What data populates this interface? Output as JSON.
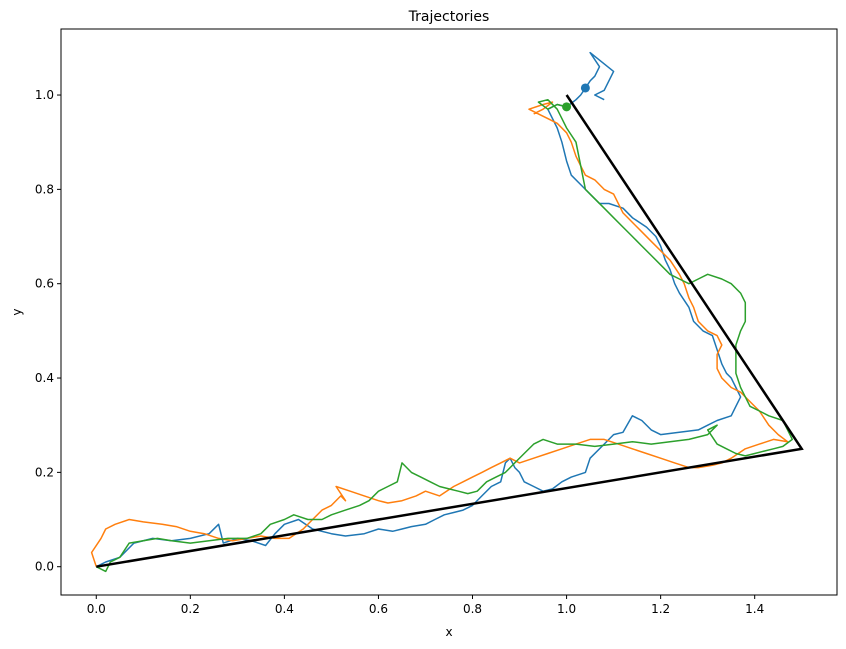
{
  "chart_data": {
    "type": "line",
    "title": "Trajectories",
    "xlabel": "x",
    "ylabel": "y",
    "xlim": [
      -0.075,
      1.575
    ],
    "ylim": [
      -0.06,
      1.14
    ],
    "grid": false,
    "x_ticks": [
      0.0,
      0.2,
      0.4,
      0.6,
      0.8,
      1.0,
      1.2,
      1.4
    ],
    "x_tick_labels": [
      "0.0",
      "0.2",
      "0.4",
      "0.6",
      "0.8",
      "1.0",
      "1.2",
      "1.4"
    ],
    "y_ticks": [
      0.0,
      0.2,
      0.4,
      0.6,
      0.8,
      1.0
    ],
    "y_tick_labels": [
      "0.0",
      "0.2",
      "0.4",
      "0.6",
      "0.8",
      "1.0"
    ],
    "reference_path": {
      "color": "#000000",
      "points": [
        [
          0.0,
          0.0
        ],
        [
          1.5,
          0.25
        ],
        [
          1.0,
          1.0
        ]
      ]
    },
    "series": [
      {
        "color": "#1f77b4",
        "end_marker": [
          1.04,
          1.015
        ],
        "points": [
          [
            0.0,
            0.0
          ],
          [
            0.02,
            0.01
          ],
          [
            0.05,
            0.02
          ],
          [
            0.08,
            0.05
          ],
          [
            0.12,
            0.06
          ],
          [
            0.16,
            0.055
          ],
          [
            0.2,
            0.06
          ],
          [
            0.24,
            0.07
          ],
          [
            0.26,
            0.09
          ],
          [
            0.27,
            0.05
          ],
          [
            0.3,
            0.06
          ],
          [
            0.33,
            0.055
          ],
          [
            0.36,
            0.045
          ],
          [
            0.38,
            0.07
          ],
          [
            0.4,
            0.09
          ],
          [
            0.43,
            0.1
          ],
          [
            0.46,
            0.08
          ],
          [
            0.5,
            0.07
          ],
          [
            0.53,
            0.065
          ],
          [
            0.57,
            0.07
          ],
          [
            0.6,
            0.08
          ],
          [
            0.63,
            0.075
          ],
          [
            0.65,
            0.08
          ],
          [
            0.67,
            0.085
          ],
          [
            0.7,
            0.09
          ],
          [
            0.72,
            0.1
          ],
          [
            0.74,
            0.11
          ],
          [
            0.76,
            0.115
          ],
          [
            0.78,
            0.12
          ],
          [
            0.8,
            0.13
          ],
          [
            0.82,
            0.15
          ],
          [
            0.84,
            0.17
          ],
          [
            0.86,
            0.18
          ],
          [
            0.87,
            0.22
          ],
          [
            0.88,
            0.23
          ],
          [
            0.89,
            0.21
          ],
          [
            0.9,
            0.2
          ],
          [
            0.91,
            0.18
          ],
          [
            0.93,
            0.17
          ],
          [
            0.95,
            0.16
          ],
          [
            0.97,
            0.165
          ],
          [
            0.99,
            0.18
          ],
          [
            1.01,
            0.19
          ],
          [
            1.04,
            0.2
          ],
          [
            1.05,
            0.23
          ],
          [
            1.08,
            0.26
          ],
          [
            1.1,
            0.28
          ],
          [
            1.12,
            0.285
          ],
          [
            1.14,
            0.32
          ],
          [
            1.16,
            0.31
          ],
          [
            1.18,
            0.29
          ],
          [
            1.2,
            0.28
          ],
          [
            1.24,
            0.285
          ],
          [
            1.28,
            0.29
          ],
          [
            1.3,
            0.3
          ],
          [
            1.32,
            0.31
          ],
          [
            1.35,
            0.32
          ],
          [
            1.36,
            0.34
          ],
          [
            1.37,
            0.36
          ],
          [
            1.36,
            0.38
          ],
          [
            1.35,
            0.4
          ],
          [
            1.34,
            0.41
          ],
          [
            1.33,
            0.43
          ],
          [
            1.32,
            0.46
          ],
          [
            1.31,
            0.49
          ],
          [
            1.29,
            0.5
          ],
          [
            1.27,
            0.52
          ],
          [
            1.26,
            0.55
          ],
          [
            1.24,
            0.58
          ],
          [
            1.23,
            0.6
          ],
          [
            1.22,
            0.63
          ],
          [
            1.21,
            0.65
          ],
          [
            1.2,
            0.68
          ],
          [
            1.19,
            0.7
          ],
          [
            1.17,
            0.72
          ],
          [
            1.14,
            0.74
          ],
          [
            1.12,
            0.76
          ],
          [
            1.09,
            0.77
          ],
          [
            1.07,
            0.77
          ],
          [
            1.05,
            0.79
          ],
          [
            1.03,
            0.81
          ],
          [
            1.01,
            0.83
          ],
          [
            1.0,
            0.86
          ],
          [
            0.99,
            0.9
          ],
          [
            0.98,
            0.93
          ],
          [
            0.97,
            0.95
          ],
          [
            0.96,
            0.97
          ],
          [
            0.98,
            0.98
          ],
          [
            1.0,
            0.975
          ],
          [
            1.02,
            0.99
          ],
          [
            1.03,
            1.0
          ],
          [
            1.04,
            1.015
          ],
          [
            1.05,
            1.03
          ],
          [
            1.06,
            1.04
          ],
          [
            1.07,
            1.06
          ],
          [
            1.05,
            1.09
          ],
          [
            1.1,
            1.05
          ],
          [
            1.08,
            1.01
          ],
          [
            1.06,
            1.0
          ],
          [
            1.08,
            0.99
          ]
        ]
      },
      {
        "color": "#ff7f0e",
        "end_marker": null,
        "points": [
          [
            0.0,
            0.0
          ],
          [
            -0.01,
            0.03
          ],
          [
            0.01,
            0.06
          ],
          [
            0.02,
            0.08
          ],
          [
            0.04,
            0.09
          ],
          [
            0.07,
            0.1
          ],
          [
            0.1,
            0.095
          ],
          [
            0.14,
            0.09
          ],
          [
            0.17,
            0.085
          ],
          [
            0.2,
            0.075
          ],
          [
            0.23,
            0.07
          ],
          [
            0.26,
            0.06
          ],
          [
            0.29,
            0.055
          ],
          [
            0.32,
            0.06
          ],
          [
            0.35,
            0.065
          ],
          [
            0.38,
            0.06
          ],
          [
            0.41,
            0.06
          ],
          [
            0.44,
            0.08
          ],
          [
            0.46,
            0.1
          ],
          [
            0.48,
            0.12
          ],
          [
            0.5,
            0.13
          ],
          [
            0.52,
            0.15
          ],
          [
            0.53,
            0.14
          ],
          [
            0.51,
            0.17
          ],
          [
            0.54,
            0.16
          ],
          [
            0.57,
            0.15
          ],
          [
            0.6,
            0.14
          ],
          [
            0.62,
            0.135
          ],
          [
            0.65,
            0.14
          ],
          [
            0.68,
            0.15
          ],
          [
            0.7,
            0.16
          ],
          [
            0.73,
            0.15
          ],
          [
            0.76,
            0.17
          ],
          [
            0.78,
            0.18
          ],
          [
            0.8,
            0.19
          ],
          [
            0.82,
            0.2
          ],
          [
            0.84,
            0.21
          ],
          [
            0.86,
            0.22
          ],
          [
            0.88,
            0.23
          ],
          [
            0.9,
            0.22
          ],
          [
            0.93,
            0.23
          ],
          [
            0.96,
            0.24
          ],
          [
            0.99,
            0.25
          ],
          [
            1.02,
            0.26
          ],
          [
            1.05,
            0.27
          ],
          [
            1.08,
            0.27
          ],
          [
            1.11,
            0.26
          ],
          [
            1.14,
            0.25
          ],
          [
            1.17,
            0.24
          ],
          [
            1.2,
            0.23
          ],
          [
            1.23,
            0.22
          ],
          [
            1.26,
            0.21
          ],
          [
            1.28,
            0.21
          ],
          [
            1.31,
            0.215
          ],
          [
            1.33,
            0.22
          ],
          [
            1.35,
            0.23
          ],
          [
            1.38,
            0.25
          ],
          [
            1.41,
            0.26
          ],
          [
            1.44,
            0.27
          ],
          [
            1.47,
            0.265
          ],
          [
            1.45,
            0.28
          ],
          [
            1.43,
            0.3
          ],
          [
            1.41,
            0.33
          ],
          [
            1.39,
            0.35
          ],
          [
            1.37,
            0.37
          ],
          [
            1.35,
            0.38
          ],
          [
            1.33,
            0.4
          ],
          [
            1.32,
            0.42
          ],
          [
            1.32,
            0.45
          ],
          [
            1.33,
            0.47
          ],
          [
            1.32,
            0.49
          ],
          [
            1.3,
            0.5
          ],
          [
            1.28,
            0.52
          ],
          [
            1.27,
            0.55
          ],
          [
            1.26,
            0.57
          ],
          [
            1.25,
            0.6
          ],
          [
            1.24,
            0.62
          ],
          [
            1.22,
            0.65
          ],
          [
            1.2,
            0.67
          ],
          [
            1.18,
            0.69
          ],
          [
            1.16,
            0.71
          ],
          [
            1.14,
            0.73
          ],
          [
            1.12,
            0.75
          ],
          [
            1.11,
            0.77
          ],
          [
            1.1,
            0.79
          ],
          [
            1.08,
            0.8
          ],
          [
            1.06,
            0.82
          ],
          [
            1.04,
            0.83
          ],
          [
            1.03,
            0.85
          ],
          [
            1.02,
            0.87
          ],
          [
            1.01,
            0.9
          ],
          [
            1.0,
            0.92
          ],
          [
            0.98,
            0.94
          ],
          [
            0.96,
            0.95
          ],
          [
            0.94,
            0.96
          ],
          [
            0.92,
            0.97
          ],
          [
            0.95,
            0.98
          ],
          [
            0.97,
            0.985
          ],
          [
            0.95,
            0.97
          ],
          [
            0.93,
            0.96
          ]
        ]
      },
      {
        "color": "#2ca02c",
        "end_marker": [
          1.0,
          0.975
        ],
        "points": [
          [
            0.0,
            0.0
          ],
          [
            0.02,
            -0.01
          ],
          [
            0.03,
            0.01
          ],
          [
            0.05,
            0.02
          ],
          [
            0.07,
            0.05
          ],
          [
            0.1,
            0.055
          ],
          [
            0.13,
            0.06
          ],
          [
            0.16,
            0.055
          ],
          [
            0.2,
            0.05
          ],
          [
            0.24,
            0.055
          ],
          [
            0.28,
            0.06
          ],
          [
            0.32,
            0.06
          ],
          [
            0.35,
            0.07
          ],
          [
            0.37,
            0.09
          ],
          [
            0.4,
            0.1
          ],
          [
            0.42,
            0.11
          ],
          [
            0.45,
            0.1
          ],
          [
            0.48,
            0.1
          ],
          [
            0.5,
            0.11
          ],
          [
            0.53,
            0.12
          ],
          [
            0.56,
            0.13
          ],
          [
            0.58,
            0.14
          ],
          [
            0.6,
            0.16
          ],
          [
            0.62,
            0.17
          ],
          [
            0.64,
            0.18
          ],
          [
            0.65,
            0.22
          ],
          [
            0.67,
            0.2
          ],
          [
            0.69,
            0.19
          ],
          [
            0.71,
            0.18
          ],
          [
            0.73,
            0.17
          ],
          [
            0.75,
            0.165
          ],
          [
            0.77,
            0.16
          ],
          [
            0.79,
            0.155
          ],
          [
            0.81,
            0.16
          ],
          [
            0.83,
            0.18
          ],
          [
            0.85,
            0.19
          ],
          [
            0.87,
            0.2
          ],
          [
            0.89,
            0.22
          ],
          [
            0.91,
            0.24
          ],
          [
            0.93,
            0.26
          ],
          [
            0.95,
            0.27
          ],
          [
            0.98,
            0.26
          ],
          [
            1.02,
            0.26
          ],
          [
            1.06,
            0.255
          ],
          [
            1.1,
            0.26
          ],
          [
            1.14,
            0.265
          ],
          [
            1.18,
            0.26
          ],
          [
            1.22,
            0.265
          ],
          [
            1.26,
            0.27
          ],
          [
            1.3,
            0.28
          ],
          [
            1.32,
            0.3
          ],
          [
            1.3,
            0.29
          ],
          [
            1.32,
            0.26
          ],
          [
            1.34,
            0.25
          ],
          [
            1.36,
            0.24
          ],
          [
            1.38,
            0.235
          ],
          [
            1.4,
            0.24
          ],
          [
            1.42,
            0.245
          ],
          [
            1.44,
            0.25
          ],
          [
            1.46,
            0.255
          ],
          [
            1.48,
            0.27
          ],
          [
            1.47,
            0.29
          ],
          [
            1.46,
            0.31
          ],
          [
            1.43,
            0.32
          ],
          [
            1.41,
            0.33
          ],
          [
            1.39,
            0.34
          ],
          [
            1.38,
            0.36
          ],
          [
            1.37,
            0.38
          ],
          [
            1.36,
            0.41
          ],
          [
            1.36,
            0.44
          ],
          [
            1.36,
            0.47
          ],
          [
            1.37,
            0.5
          ],
          [
            1.38,
            0.52
          ],
          [
            1.38,
            0.56
          ],
          [
            1.37,
            0.58
          ],
          [
            1.35,
            0.6
          ],
          [
            1.33,
            0.61
          ],
          [
            1.3,
            0.62
          ],
          [
            1.28,
            0.61
          ],
          [
            1.26,
            0.6
          ],
          [
            1.24,
            0.61
          ],
          [
            1.22,
            0.62
          ],
          [
            1.2,
            0.64
          ],
          [
            1.18,
            0.66
          ],
          [
            1.16,
            0.68
          ],
          [
            1.14,
            0.7
          ],
          [
            1.12,
            0.72
          ],
          [
            1.1,
            0.74
          ],
          [
            1.08,
            0.76
          ],
          [
            1.06,
            0.78
          ],
          [
            1.04,
            0.8
          ],
          [
            1.03,
            0.85
          ],
          [
            1.02,
            0.9
          ],
          [
            1.0,
            0.93
          ],
          [
            0.99,
            0.95
          ],
          [
            0.98,
            0.97
          ],
          [
            0.96,
            0.99
          ],
          [
            0.94,
            0.985
          ],
          [
            0.96,
            0.97
          ],
          [
            0.98,
            0.98
          ],
          [
            1.0,
            0.975
          ]
        ]
      }
    ]
  }
}
